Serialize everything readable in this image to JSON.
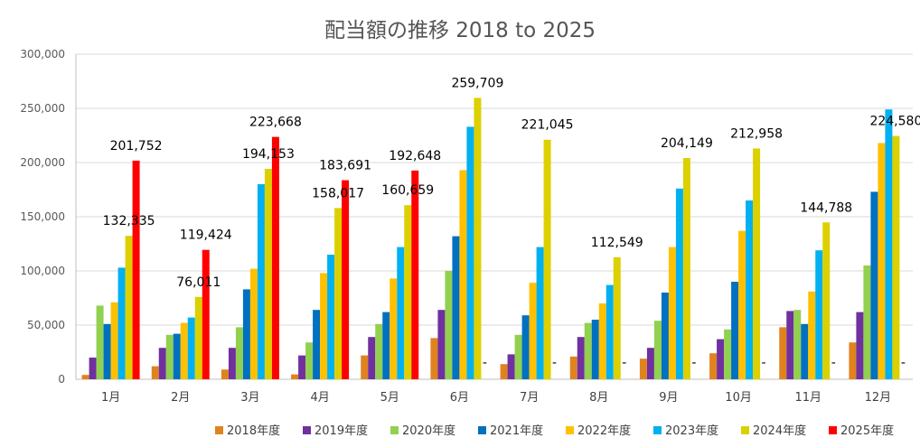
{
  "chart_data": {
    "type": "bar",
    "title": "配当額の推移  2018 to 2025",
    "xlabel": "",
    "ylabel": "",
    "ylim": [
      0,
      300000
    ],
    "yticks": [
      0,
      50000,
      100000,
      150000,
      200000,
      250000,
      300000
    ],
    "ytick_labels": [
      "0",
      "50,000",
      "100,000",
      "150,000",
      "200,000",
      "250,000",
      "300,000"
    ],
    "grid": true,
    "legend_position": "bottom",
    "categories": [
      "1月",
      "2月",
      "3月",
      "4月",
      "5月",
      "6月",
      "7月",
      "8月",
      "9月",
      "10月",
      "11月",
      "12月"
    ],
    "series": [
      {
        "name": "2018年度",
        "color": "#E0831F",
        "values": [
          4000,
          12000,
          9000,
          4500,
          22000,
          38000,
          14000,
          21000,
          19000,
          24000,
          48000,
          34000
        ]
      },
      {
        "name": "2019年度",
        "color": "#7030A0",
        "values": [
          20000,
          29000,
          29000,
          22000,
          39000,
          64000,
          23000,
          39000,
          29000,
          37000,
          63000,
          62000
        ]
      },
      {
        "name": "2020年度",
        "color": "#92D050",
        "values": [
          68000,
          41000,
          48000,
          34000,
          51000,
          100000,
          41000,
          52000,
          54000,
          46000,
          64000,
          105000
        ]
      },
      {
        "name": "2021年度",
        "color": "#0070C0",
        "values": [
          51000,
          42000,
          83000,
          64000,
          62000,
          132000,
          59000,
          55000,
          80000,
          90000,
          51000,
          173000
        ]
      },
      {
        "name": "2022年度",
        "color": "#FFC000",
        "values": [
          71000,
          52000,
          102000,
          98000,
          93000,
          193000,
          89000,
          70000,
          122000,
          137000,
          81000,
          218000
        ]
      },
      {
        "name": "2023年度",
        "color": "#00B0F0",
        "values": [
          103000,
          57000,
          180000,
          115000,
          122000,
          233000,
          122000,
          87000,
          176000,
          165000,
          119000,
          249000
        ]
      },
      {
        "name": "2024年度",
        "color": "#DDD000",
        "values": [
          132335,
          76011,
          194153,
          158017,
          160659,
          259709,
          221045,
          112549,
          204149,
          212958,
          144788,
          224580
        ]
      },
      {
        "name": "2025年度",
        "color": "#FF0000",
        "values": [
          201752,
          119424,
          223668,
          183691,
          192648,
          null,
          null,
          null,
          null,
          null,
          null,
          null
        ]
      }
    ],
    "data_labels": [
      {
        "category": "1月",
        "series": "2024年度",
        "text": "132,335"
      },
      {
        "category": "1月",
        "series": "2025年度",
        "text": "201,752"
      },
      {
        "category": "2月",
        "series": "2024年度",
        "text": "76,011"
      },
      {
        "category": "2月",
        "series": "2025年度",
        "text": "119,424"
      },
      {
        "category": "3月",
        "series": "2024年度",
        "text": "194,153"
      },
      {
        "category": "3月",
        "series": "2025年度",
        "text": "223,668"
      },
      {
        "category": "4月",
        "series": "2024年度",
        "text": "158,017"
      },
      {
        "category": "4月",
        "series": "2025年度",
        "text": "183,691"
      },
      {
        "category": "5月",
        "series": "2024年度",
        "text": "160,659"
      },
      {
        "category": "5月",
        "series": "2025年度",
        "text": "192,648"
      },
      {
        "category": "6月",
        "series": "2024年度",
        "text": "259,709"
      },
      {
        "category": "6月",
        "series": "2025年度",
        "text": "-"
      },
      {
        "category": "7月",
        "series": "2024年度",
        "text": "221,045"
      },
      {
        "category": "7月",
        "series": "2025年度",
        "text": "-"
      },
      {
        "category": "8月",
        "series": "2024年度",
        "text": "112,549"
      },
      {
        "category": "8月",
        "series": "2025年度",
        "text": "-"
      },
      {
        "category": "9月",
        "series": "2024年度",
        "text": "204,149"
      },
      {
        "category": "9月",
        "series": "2025年度",
        "text": "-"
      },
      {
        "category": "10月",
        "series": "2024年度",
        "text": "212,958"
      },
      {
        "category": "10月",
        "series": "2025年度",
        "text": "-"
      },
      {
        "category": "11月",
        "series": "2024年度",
        "text": "144,788"
      },
      {
        "category": "11月",
        "series": "2025年度",
        "text": "-"
      },
      {
        "category": "12月",
        "series": "2024年度",
        "text": "224,580"
      },
      {
        "category": "12月",
        "series": "2025年度",
        "text": "-"
      }
    ]
  }
}
